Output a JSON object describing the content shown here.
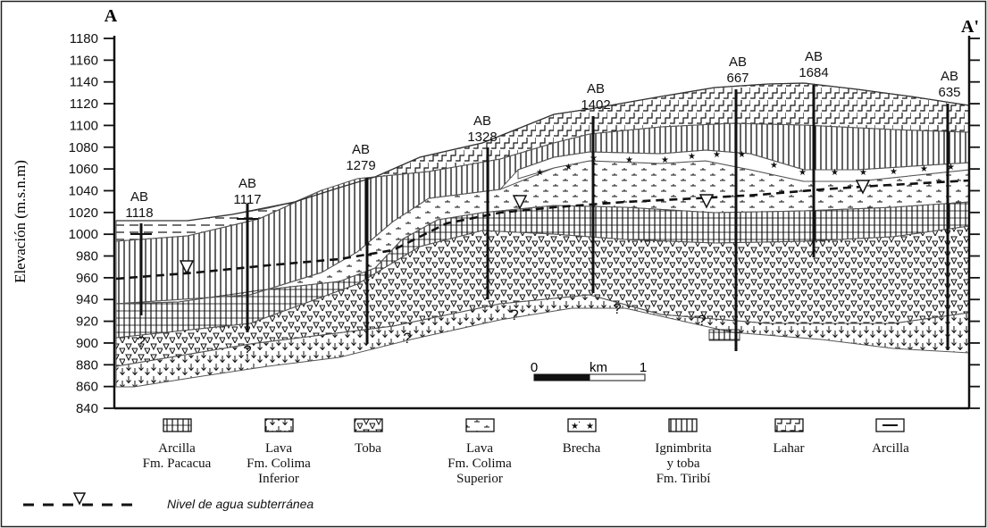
{
  "section": {
    "start_label": "A",
    "end_label": "A'",
    "y_axis_title": "Elevación (m.s.n.m)",
    "y_ticks": [
      "1180",
      "1160",
      "1140",
      "1120",
      "1100",
      "1080",
      "1060",
      "1040",
      "1020",
      "1000",
      "980",
      "960",
      "940",
      "920",
      "900",
      "880",
      "860",
      "840"
    ]
  },
  "wells": [
    {
      "prefix": "AB",
      "number": "1118"
    },
    {
      "prefix": "AB",
      "number": "1117"
    },
    {
      "prefix": "AB",
      "number": "1279"
    },
    {
      "prefix": "AB",
      "number": "1328"
    },
    {
      "prefix": "AB",
      "number": "1402"
    },
    {
      "prefix": "AB",
      "number": "667"
    },
    {
      "prefix": "AB",
      "number": "1684"
    },
    {
      "prefix": "AB",
      "number": "635"
    }
  ],
  "scale_bar": {
    "start": "0",
    "unit": "km",
    "end": "1"
  },
  "uncertain_mark": "?",
  "legend": [
    {
      "lines": [
        "Arcilla",
        "Fm. Pacacua"
      ]
    },
    {
      "lines": [
        "Lava",
        "Fm. Colima",
        "Inferior"
      ]
    },
    {
      "lines": [
        "Toba"
      ]
    },
    {
      "lines": [
        "Lava",
        "Fm. Colima",
        "Superior"
      ]
    },
    {
      "lines": [
        "Brecha"
      ]
    },
    {
      "lines": [
        "Ignimbrita",
        "y toba",
        "Fm. Tiribí"
      ]
    },
    {
      "lines": [
        "Lahar"
      ]
    },
    {
      "lines": [
        "Arcilla"
      ]
    }
  ],
  "water_level_label": "Nivel de agua  subterránea"
}
